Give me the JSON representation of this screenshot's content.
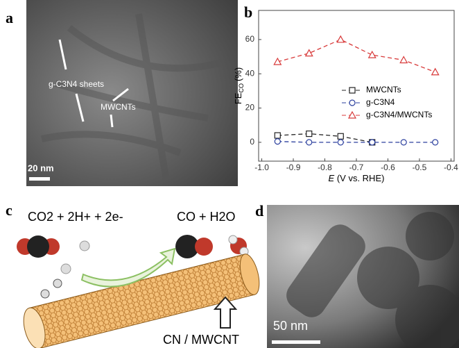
{
  "panels": {
    "a": {
      "letter": "a",
      "label_sheets": "g-C3N4 sheets",
      "label_tubes": "MWCNTs",
      "scale": "20 nm"
    },
    "c": {
      "letter": "c",
      "reactants": "CO2 + 2H+ + 2e-",
      "products": "CO + H2O",
      "catalyst": "CN / MWCNT"
    },
    "d": {
      "letter": "d",
      "scale": "50 nm"
    },
    "b": {
      "letter": "b"
    }
  },
  "chart_data": {
    "type": "line",
    "ylabel": "FE",
    "ylabel_sub": "CO",
    "ylabel_unit": "(%)",
    "xlabel_var": "E",
    "xlabel_unit": "(V vs. RHE)",
    "x": [
      -0.95,
      -0.85,
      -0.75,
      -0.65,
      -0.55,
      -0.45
    ],
    "series": [
      {
        "name": "MWCNTs",
        "color": "#222222",
        "marker": "square",
        "values": [
          4,
          5,
          3.5,
          0,
          null,
          null
        ]
      },
      {
        "name": "g-C3N4",
        "color": "#2b3f9e",
        "marker": "circle",
        "values": [
          0.5,
          0,
          0,
          0,
          0,
          0
        ]
      },
      {
        "name": "g-C3N4/MWCNTs",
        "color": "#d83a3a",
        "marker": "triangle",
        "values": [
          47,
          52,
          60,
          51,
          48,
          41
        ]
      }
    ],
    "xlim": [
      -1.01,
      -0.39
    ],
    "ylim": [
      -11,
      77
    ],
    "xticks": [
      {
        "value": -1,
        "label": "-1.0"
      },
      -0.9,
      -0.8,
      -0.7,
      -0.6,
      -0.5,
      -0.4
    ],
    "yticks": [
      0,
      20,
      40,
      60
    ],
    "line_style": "dashed"
  }
}
